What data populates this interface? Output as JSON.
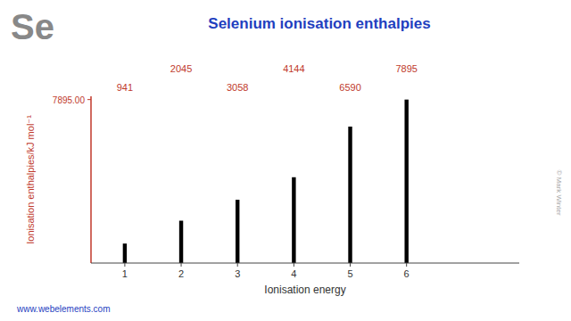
{
  "chart_data": {
    "type": "bar",
    "title": "Selenium ionisation enthalpies",
    "x_label": "Ionisation energy",
    "y_label": "Ionisation enthalpies/kJ mol⁻¹",
    "x": [
      1,
      2,
      3,
      4,
      5,
      6
    ],
    "values": [
      941,
      2045,
      3058,
      4144,
      6590,
      7895
    ],
    "color": "#000000",
    "xlim": [
      0.4,
      8.0
    ],
    "xticks": [
      1,
      2,
      3,
      4,
      5,
      6
    ],
    "ylim": [
      0,
      8052.9
    ],
    "yticks": [
      {
        "value": 7895,
        "label": "7895.00"
      }
    ],
    "grid": false,
    "data_labels": true,
    "annotations": [
      {
        "text": "Se"
      },
      {
        "text": "© Mark Winter"
      },
      {
        "text": "www.webelements.com"
      }
    ]
  }
}
